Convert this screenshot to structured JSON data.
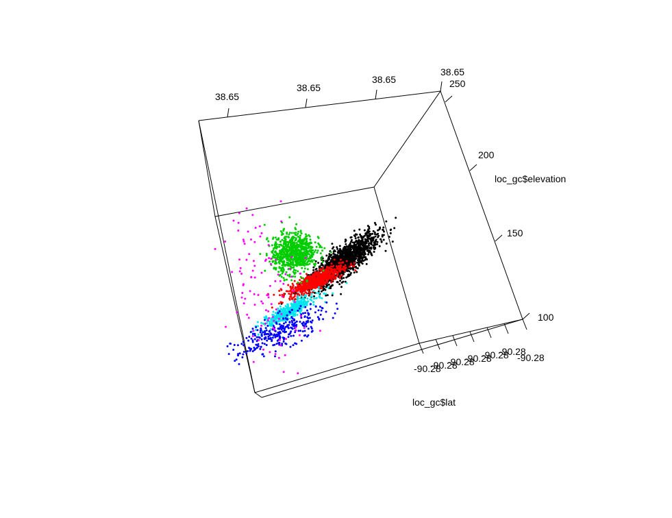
{
  "chart_data": {
    "type": "scatter",
    "title": "",
    "xlabel": "loc_gc$lat",
    "ylabel": "",
    "zlabel": "loc_gc$elevation",
    "x_tick_labels": [
      "-90.28",
      "-90.28",
      "-90.28",
      "-90.28",
      "-90.28",
      "-90.28",
      "-90.28"
    ],
    "y_tick_labels": [
      "38.65",
      "38.65",
      "38.65",
      "38.65"
    ],
    "z_tick_labels": [
      "100",
      "150",
      "200",
      "250"
    ],
    "zlim": [
      100,
      250
    ],
    "grid": false,
    "legend": "none",
    "point_colors": [
      "#000000",
      "#ff0000",
      "#00cd00",
      "#0000ff",
      "#00e5ee",
      "#ff00ff"
    ],
    "clusters": [
      {
        "color": "#000000",
        "count": 1400,
        "center": [
          0.68,
          0.56
        ],
        "spread": [
          0.11,
          0.038
        ],
        "tilt": -0.33
      },
      {
        "color": "#ff0000",
        "count": 700,
        "center": [
          0.49,
          0.5
        ],
        "spread": [
          0.085,
          0.022
        ],
        "tilt": -0.15
      },
      {
        "color": "#00cd00",
        "count": 800,
        "center": [
          0.4,
          0.68
        ],
        "spread": [
          0.065,
          0.055
        ],
        "tilt": 0.0
      },
      {
        "color": "#00e5ee",
        "count": 450,
        "center": [
          0.3,
          0.38
        ],
        "spread": [
          0.085,
          0.018
        ],
        "tilt": -0.2
      },
      {
        "color": "#0000ff",
        "count": 300,
        "center": [
          0.22,
          0.28
        ],
        "spread": [
          0.14,
          0.04
        ],
        "tilt": -0.12
      },
      {
        "color": "#ff00ff",
        "count": 110,
        "center": [
          0.2,
          0.55
        ],
        "spread": [
          0.11,
          0.23
        ],
        "tilt": 0.0
      }
    ]
  }
}
